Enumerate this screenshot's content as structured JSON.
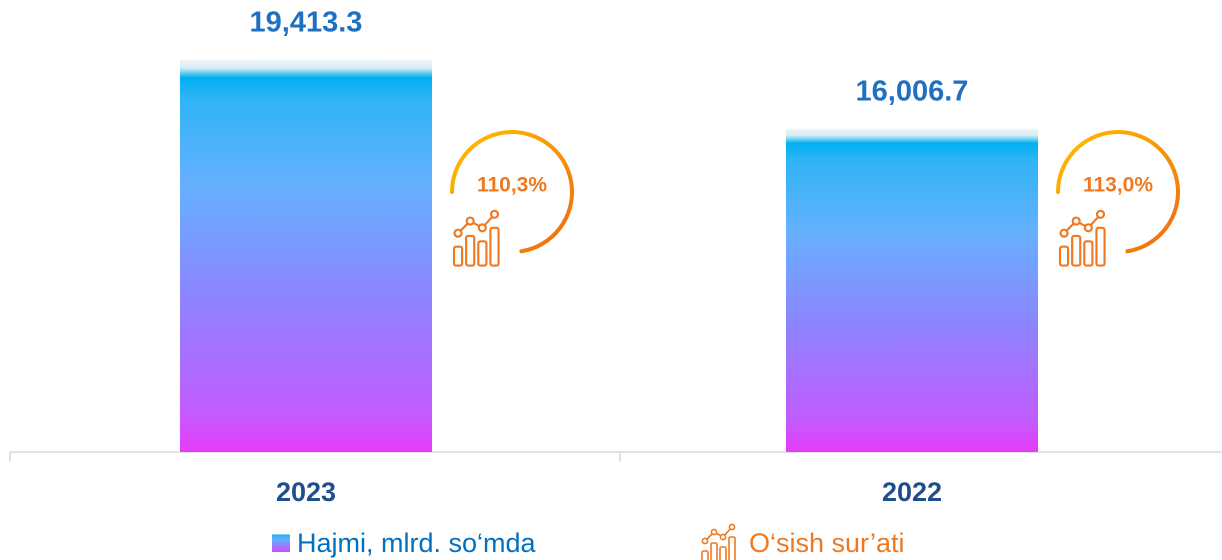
{
  "chart_data": {
    "type": "bar",
    "categories": [
      "2023",
      "2022"
    ],
    "series": [
      {
        "name": "Hajmi, mlrd. so‘mda",
        "values": [
          19413.3,
          16006.7
        ],
        "value_labels": [
          "19,413.3",
          "16,006.7"
        ]
      }
    ],
    "growth": {
      "name": "O‘sish sur’ati",
      "color": "#f07820",
      "values": [
        110.3,
        113.0
      ],
      "value_labels": [
        "110,3%",
        "113,0%"
      ]
    }
  }
}
